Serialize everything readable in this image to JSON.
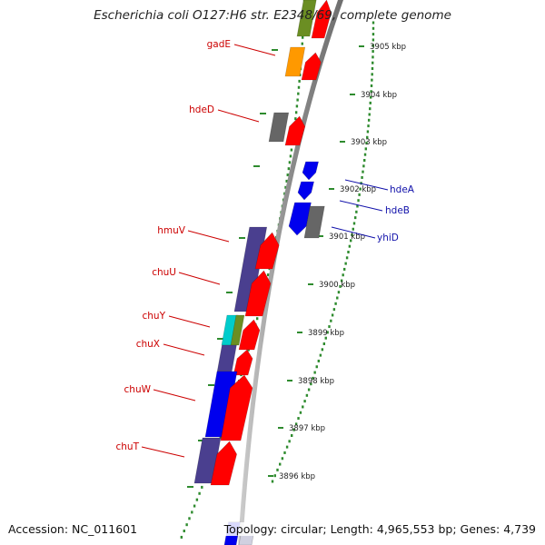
{
  "title": "Escherichia coli O127:H6 str. E2348/69, complete genome",
  "footer": {
    "accession": "Accession: NC_011601",
    "topology": "Topology: circular; Length: 4,965,553 bp; Genes: 4,739"
  },
  "colors": {
    "backbone": "#8c8c8c",
    "ticks": "#2e8b2e",
    "forward_label": "#cc0000",
    "reverse_label": "#1010aa",
    "feature_red": "#ff0000",
    "feature_purple": "#4a3f8f",
    "feature_blue": "#0000ee",
    "feature_gray": "#666666",
    "feature_orange": "#ff9900",
    "feature_cyan": "#00cccc",
    "feature_olive": "#6b8e23"
  },
  "scale_marks": [
    {
      "label": "3905 kbp",
      "kbp": 3905
    },
    {
      "label": "3904 kbp",
      "kbp": 3904
    },
    {
      "label": "3903 kbp",
      "kbp": 3903
    },
    {
      "label": "3902 kbp",
      "kbp": 3902
    },
    {
      "label": "3901 kbp",
      "kbp": 3901
    },
    {
      "label": "3900 kbp",
      "kbp": 3900
    },
    {
      "label": "3899 kbp",
      "kbp": 3899
    },
    {
      "label": "3898 kbp",
      "kbp": 3898
    },
    {
      "label": "3897 kbp",
      "kbp": 3897
    },
    {
      "label": "3896 kbp",
      "kbp": 3896
    }
  ],
  "gene_labels": [
    {
      "name": "gadE",
      "strand": "forward"
    },
    {
      "name": "hdeD",
      "strand": "forward"
    },
    {
      "name": "hmuV",
      "strand": "forward"
    },
    {
      "name": "chuU",
      "strand": "forward"
    },
    {
      "name": "chuY",
      "strand": "forward"
    },
    {
      "name": "chuX",
      "strand": "forward"
    },
    {
      "name": "chuW",
      "strand": "forward"
    },
    {
      "name": "chuT",
      "strand": "forward"
    },
    {
      "name": "hdeA",
      "strand": "reverse"
    },
    {
      "name": "hdeB",
      "strand": "reverse"
    },
    {
      "name": "yhiD",
      "strand": "reverse"
    }
  ]
}
